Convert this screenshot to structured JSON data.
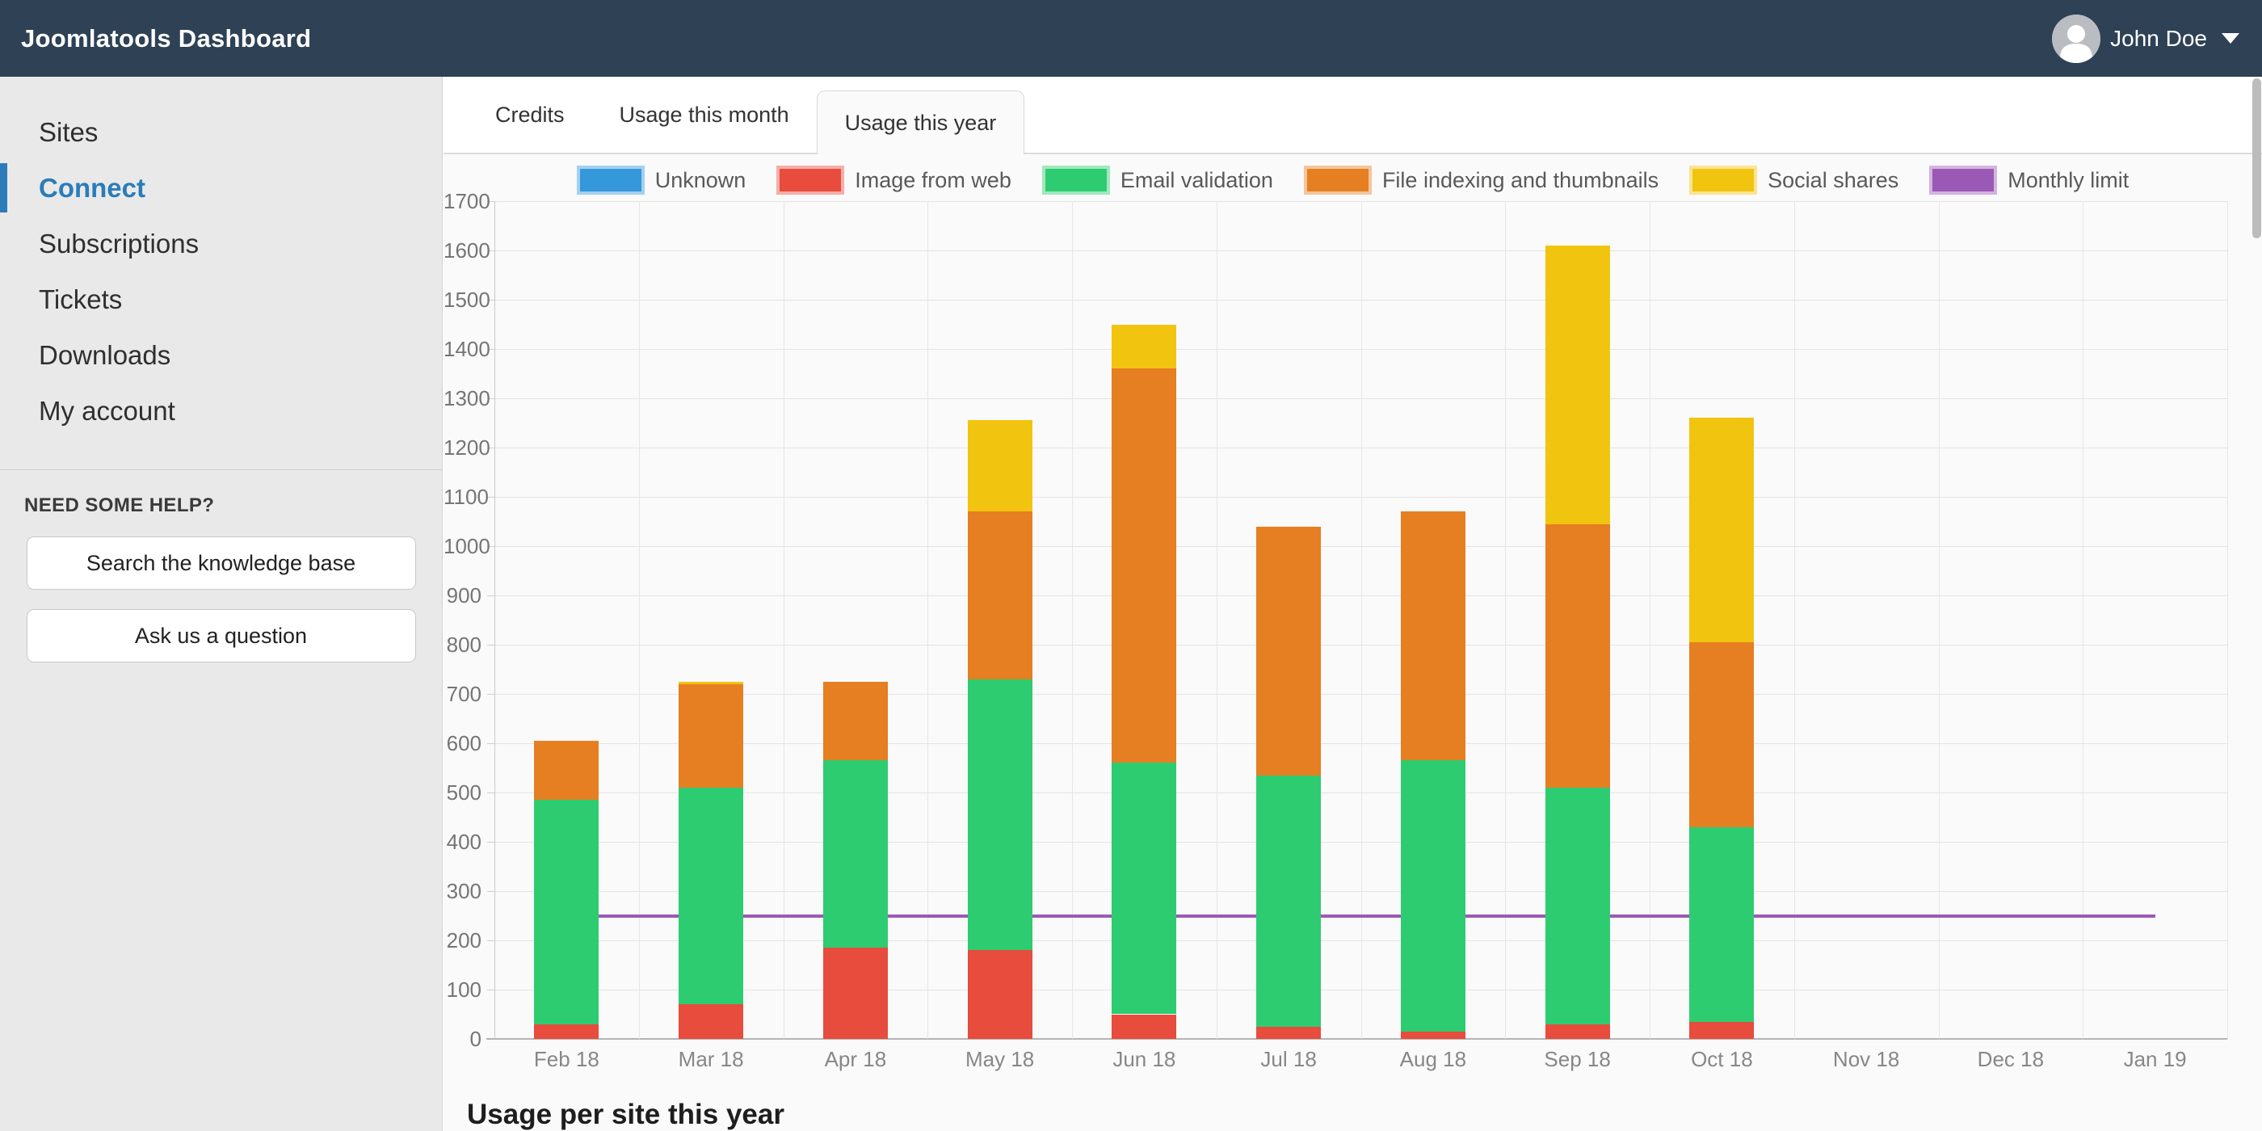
{
  "navbar": {
    "title": "Joomlatools Dashboard",
    "user_name": "John Doe"
  },
  "sidebar": {
    "items": [
      {
        "label": "Sites",
        "active": false
      },
      {
        "label": "Connect",
        "active": true
      },
      {
        "label": "Subscriptions",
        "active": false
      },
      {
        "label": "Tickets",
        "active": false
      },
      {
        "label": "Downloads",
        "active": false
      },
      {
        "label": "My account",
        "active": false
      }
    ],
    "help": {
      "title": "NEED SOME HELP?",
      "buttons": [
        "Search the knowledge base",
        "Ask us a question"
      ]
    }
  },
  "main": {
    "tabs": [
      {
        "label": "Credits",
        "active": false
      },
      {
        "label": "Usage this month",
        "active": false
      },
      {
        "label": "Usage this year",
        "active": true
      }
    ],
    "section_heading": "Usage per site this year"
  },
  "colors": {
    "navbar_bg": "#2e4155",
    "sidebar_bg": "#e9e9e9",
    "active_link": "#2b7cb9",
    "blue": "#3498db",
    "red": "#e74c3c",
    "green": "#2ecc71",
    "orange": "#e67e22",
    "yellow": "#f1c40f",
    "purple": "#9b59b6"
  },
  "chart_data": {
    "type": "bar",
    "stacked": true,
    "grid": true,
    "legend_position": "top",
    "title": "",
    "xlabel": "",
    "ylabel": "",
    "ylim": [
      0,
      1700
    ],
    "ytick_step": 100,
    "categories": [
      "Feb 18",
      "Mar 18",
      "Apr 18",
      "May 18",
      "Jun 18",
      "Jul 18",
      "Aug 18",
      "Sep 18",
      "Oct 18",
      "Nov 18",
      "Dec 18",
      "Jan 19"
    ],
    "series": [
      {
        "name": "Unknown",
        "type": "bar",
        "color": "#3498db",
        "values": [
          0,
          0,
          0,
          0,
          0,
          0,
          0,
          0,
          0,
          0,
          0,
          0
        ]
      },
      {
        "name": "Image from web",
        "type": "bar",
        "color": "#e74c3c",
        "values": [
          30,
          70,
          185,
          180,
          50,
          25,
          15,
          30,
          35,
          0,
          0,
          0
        ]
      },
      {
        "name": "Email validation",
        "type": "bar",
        "color": "#2ecc71",
        "values": [
          455,
          440,
          380,
          550,
          510,
          510,
          550,
          480,
          395,
          0,
          0,
          0
        ]
      },
      {
        "name": "File indexing and thumbnails",
        "type": "bar",
        "color": "#e67e22",
        "values": [
          120,
          210,
          160,
          340,
          800,
          505,
          505,
          535,
          375,
          0,
          0,
          0
        ]
      },
      {
        "name": "Social shares",
        "type": "bar",
        "color": "#f1c40f",
        "values": [
          0,
          5,
          0,
          185,
          90,
          0,
          0,
          565,
          455,
          0,
          0,
          0
        ]
      },
      {
        "name": "Monthly limit",
        "type": "line",
        "color": "#9b59b6",
        "values": [
          250,
          250,
          250,
          250,
          250,
          250,
          250,
          250,
          250,
          250,
          250,
          250
        ]
      }
    ],
    "stack_totals": [
      605,
      725,
      725,
      1255,
      1450,
      1040,
      1070,
      1610,
      1260,
      0,
      0,
      0
    ]
  }
}
